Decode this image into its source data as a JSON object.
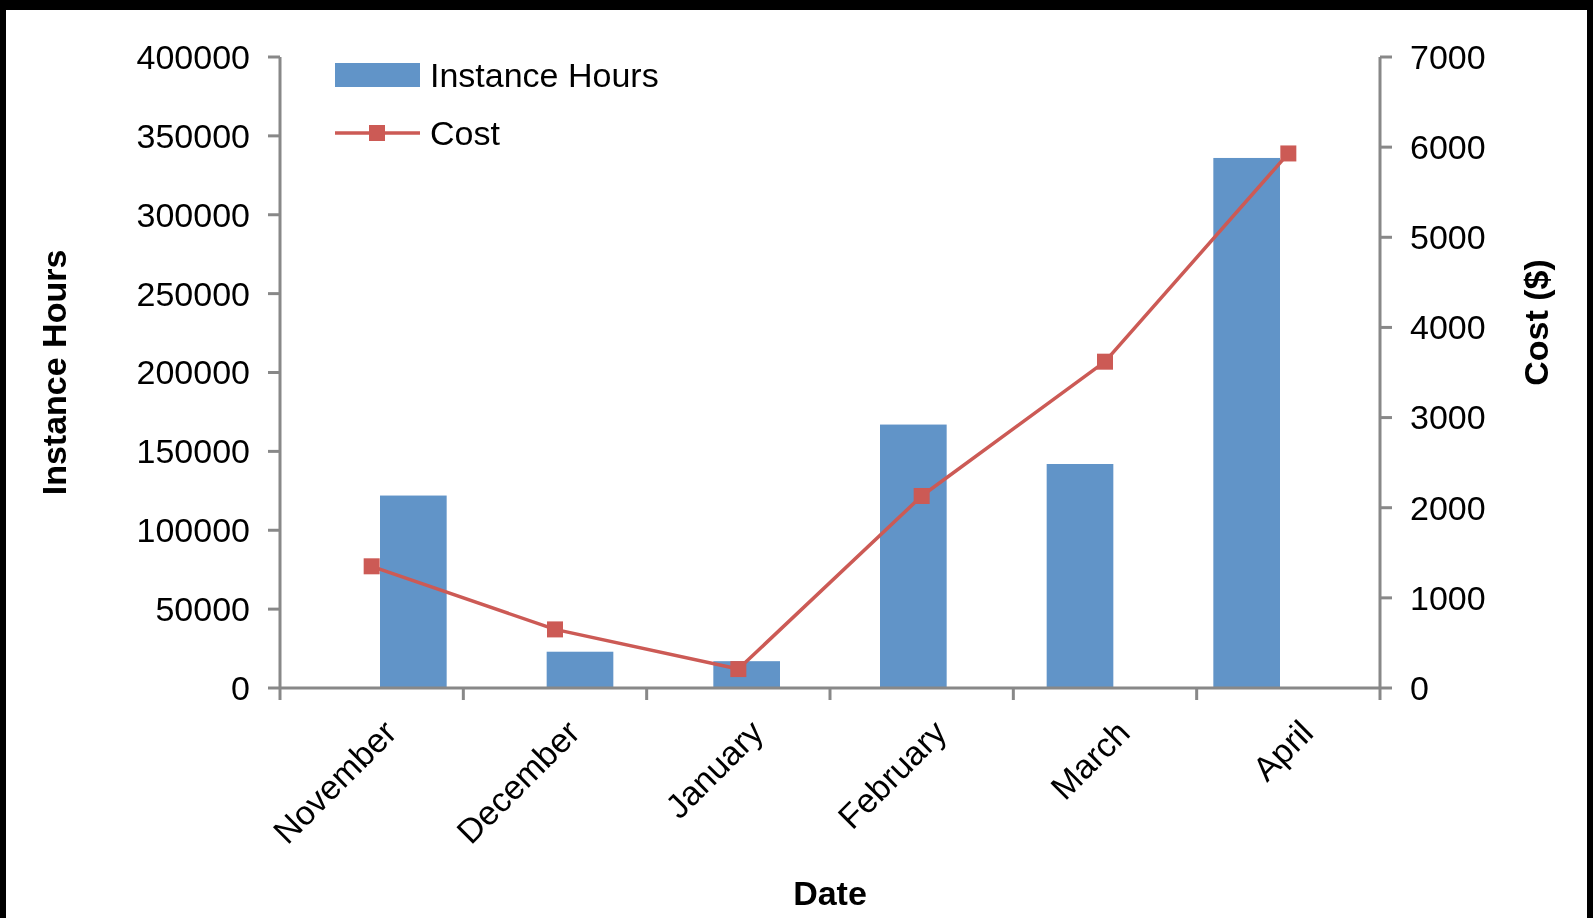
{
  "chart_data": {
    "type": "bar",
    "xlabel": "Date",
    "ylabel": "Instance Hours",
    "y2label": "Cost ($)",
    "categories": [
      "November",
      "December",
      "January",
      "February",
      "March",
      "April"
    ],
    "series": [
      {
        "name": "Instance Hours",
        "color": "#6194c8",
        "values": [
          122000,
          23000,
          17000,
          167000,
          142000,
          336000
        ]
      },
      {
        "name": "Cost",
        "type": "line",
        "axis": "y2",
        "color": "#cc5a55",
        "marker": "square",
        "values": [
          1350,
          650,
          210,
          2130,
          3620,
          5930
        ]
      }
    ],
    "ylim": [
      0,
      400000
    ],
    "yticks": [
      0,
      50000,
      100000,
      150000,
      200000,
      250000,
      300000,
      350000,
      400000
    ],
    "y2lim": [
      0,
      7000
    ],
    "y2ticks": [
      0,
      1000,
      2000,
      3000,
      4000,
      5000,
      6000,
      7000
    ],
    "grid": false,
    "legend": "top left"
  }
}
